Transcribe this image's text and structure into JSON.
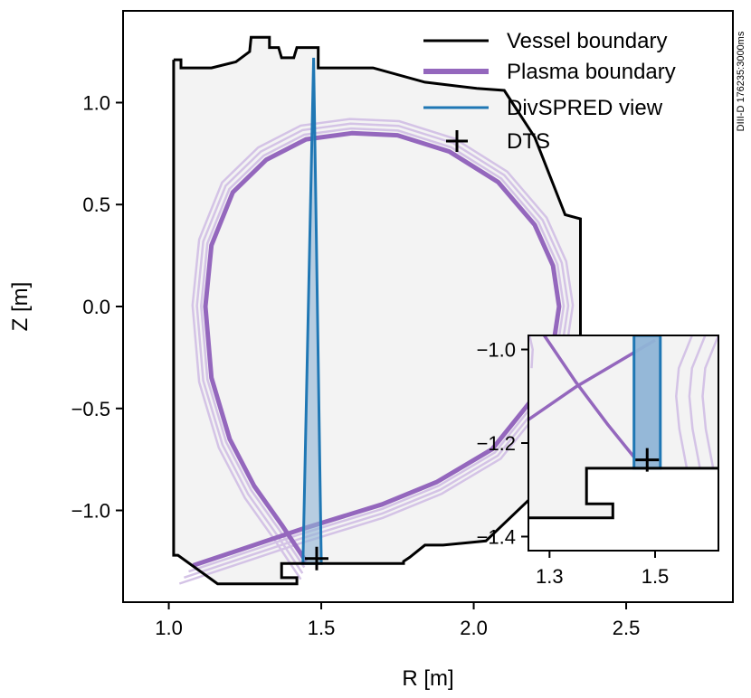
{
  "figure": {
    "side_note": "DIII-D 176235:3000ms"
  },
  "legend": {
    "vessel": "Vessel boundary",
    "plasma": "Plasma boundary",
    "view": "DivSPRED view",
    "dts": "DTS"
  },
  "colors": {
    "vessel": "#000000",
    "vessel_fill": "#f3f3f3",
    "plasma": "#9467bd",
    "plasma_faint": "#d4c3e6",
    "view": "#1f77b4",
    "view_fill": "#8fb4d6",
    "dts": "#000000"
  },
  "chart_data": [
    {
      "type": "line",
      "xlabel": "R [m]",
      "ylabel": "Z [m]",
      "xlim": [
        0.85,
        2.85
      ],
      "ylim": [
        -1.45,
        1.45
      ],
      "xticks": [
        1.0,
        1.5,
        2.0,
        2.5
      ],
      "xtick_labels": [
        "1.0",
        "1.5",
        "2.0",
        "2.5"
      ],
      "yticks": [
        1.0,
        0.5,
        0.0,
        -0.5,
        -1.0
      ],
      "ytick_labels": [
        "1.0",
        "0.5",
        "0.0",
        "−0.5",
        "−1.0"
      ],
      "legend_position": "top-right",
      "series": [
        {
          "name": "Vessel boundary",
          "points": [
            [
              1.016,
              1.21
            ],
            [
              1.04,
              1.21
            ],
            [
              1.04,
              1.17
            ],
            [
              1.14,
              1.17
            ],
            [
              1.22,
              1.2
            ],
            [
              1.265,
              1.25
            ],
            [
              1.27,
              1.32
            ],
            [
              1.33,
              1.32
            ],
            [
              1.33,
              1.27
            ],
            [
              1.36,
              1.27
            ],
            [
              1.37,
              1.22
            ],
            [
              1.41,
              1.22
            ],
            [
              1.42,
              1.27
            ],
            [
              1.49,
              1.27
            ],
            [
              1.49,
              1.17
            ],
            [
              1.67,
              1.17
            ],
            [
              1.84,
              1.1
            ],
            [
              2.01,
              1.07
            ],
            [
              2.1,
              1.06
            ],
            [
              2.2,
              0.83
            ],
            [
              2.3,
              0.45
            ],
            [
              2.35,
              0.43
            ],
            [
              2.35,
              -0.42
            ],
            [
              2.3,
              -0.45
            ],
            [
              2.18,
              -0.95
            ],
            [
              2.04,
              -1.15
            ],
            [
              1.9,
              -1.17
            ],
            [
              1.84,
              -1.17
            ],
            [
              1.79,
              -1.23
            ],
            [
              1.77,
              -1.25
            ],
            [
              1.77,
              -1.26
            ],
            [
              1.37,
              -1.26
            ],
            [
              1.37,
              -1.33
            ],
            [
              1.42,
              -1.33
            ],
            [
              1.42,
              -1.36
            ],
            [
              1.16,
              -1.36
            ],
            [
              1.03,
              -1.22
            ],
            [
              1.016,
              -1.22
            ],
            [
              1.016,
              1.21
            ]
          ]
        },
        {
          "name": "Plasma boundary",
          "points": [
            [
              1.08,
              -1.27
            ],
            [
              1.44,
              -1.09
            ],
            [
              1.7,
              -0.97
            ],
            [
              1.88,
              -0.86
            ],
            [
              2.06,
              -0.7
            ],
            [
              2.2,
              -0.44
            ],
            [
              2.26,
              -0.2
            ],
            [
              2.28,
              0.0
            ],
            [
              2.26,
              0.2
            ],
            [
              2.2,
              0.4
            ],
            [
              2.08,
              0.61
            ],
            [
              1.92,
              0.76
            ],
            [
              1.75,
              0.84
            ],
            [
              1.6,
              0.85
            ],
            [
              1.45,
              0.82
            ],
            [
              1.32,
              0.72
            ],
            [
              1.21,
              0.56
            ],
            [
              1.14,
              0.3
            ],
            [
              1.12,
              0.0
            ],
            [
              1.14,
              -0.35
            ],
            [
              1.2,
              -0.65
            ],
            [
              1.28,
              -0.88
            ],
            [
              1.37,
              -1.07
            ],
            [
              1.45,
              -1.25
            ]
          ]
        },
        {
          "name": "DivSPRED view",
          "points": [
            [
              1.475,
              1.22
            ],
            [
              1.5,
              -1.26
            ],
            [
              1.44,
              -1.26
            ],
            [
              1.475,
              1.22
            ]
          ]
        },
        {
          "name": "DTS",
          "points": [
            [
              1.485,
              -1.236
            ]
          ]
        }
      ]
    },
    {
      "type": "line",
      "xlabel": "",
      "ylabel": "",
      "xlim": [
        1.26,
        1.62
      ],
      "ylim": [
        -1.43,
        -0.97
      ],
      "xticks": [
        1.3,
        1.5
      ],
      "xtick_labels": [
        "1.3",
        "1.5"
      ],
      "yticks": [
        -1.0,
        -1.2,
        -1.4
      ],
      "ytick_labels": [
        "−1.0",
        "−1.2",
        "−1.4"
      ],
      "series": [
        {
          "name": "Vessel boundary",
          "points": [
            [
              1.62,
              -1.254
            ],
            [
              1.37,
              -1.254
            ],
            [
              1.37,
              -1.33
            ],
            [
              1.42,
              -1.33
            ],
            [
              1.42,
              -1.36
            ],
            [
              1.26,
              -1.36
            ]
          ]
        },
        {
          "name": "Plasma boundary",
          "points": [
            [
              1.26,
              -1.15
            ],
            [
              1.35,
              -1.08
            ],
            [
              1.41,
              -1.04
            ],
            [
              1.47,
              -1.0
            ],
            [
              1.5,
              -0.98
            ]
          ]
        },
        {
          "name": "DivSPRED view",
          "points": [
            [
              1.46,
              -0.97
            ],
            [
              1.46,
              -1.254
            ],
            [
              1.51,
              -1.254
            ],
            [
              1.51,
              -0.97
            ]
          ]
        },
        {
          "name": "DTS",
          "points": [
            [
              1.485,
              -1.236
            ]
          ]
        }
      ]
    }
  ]
}
